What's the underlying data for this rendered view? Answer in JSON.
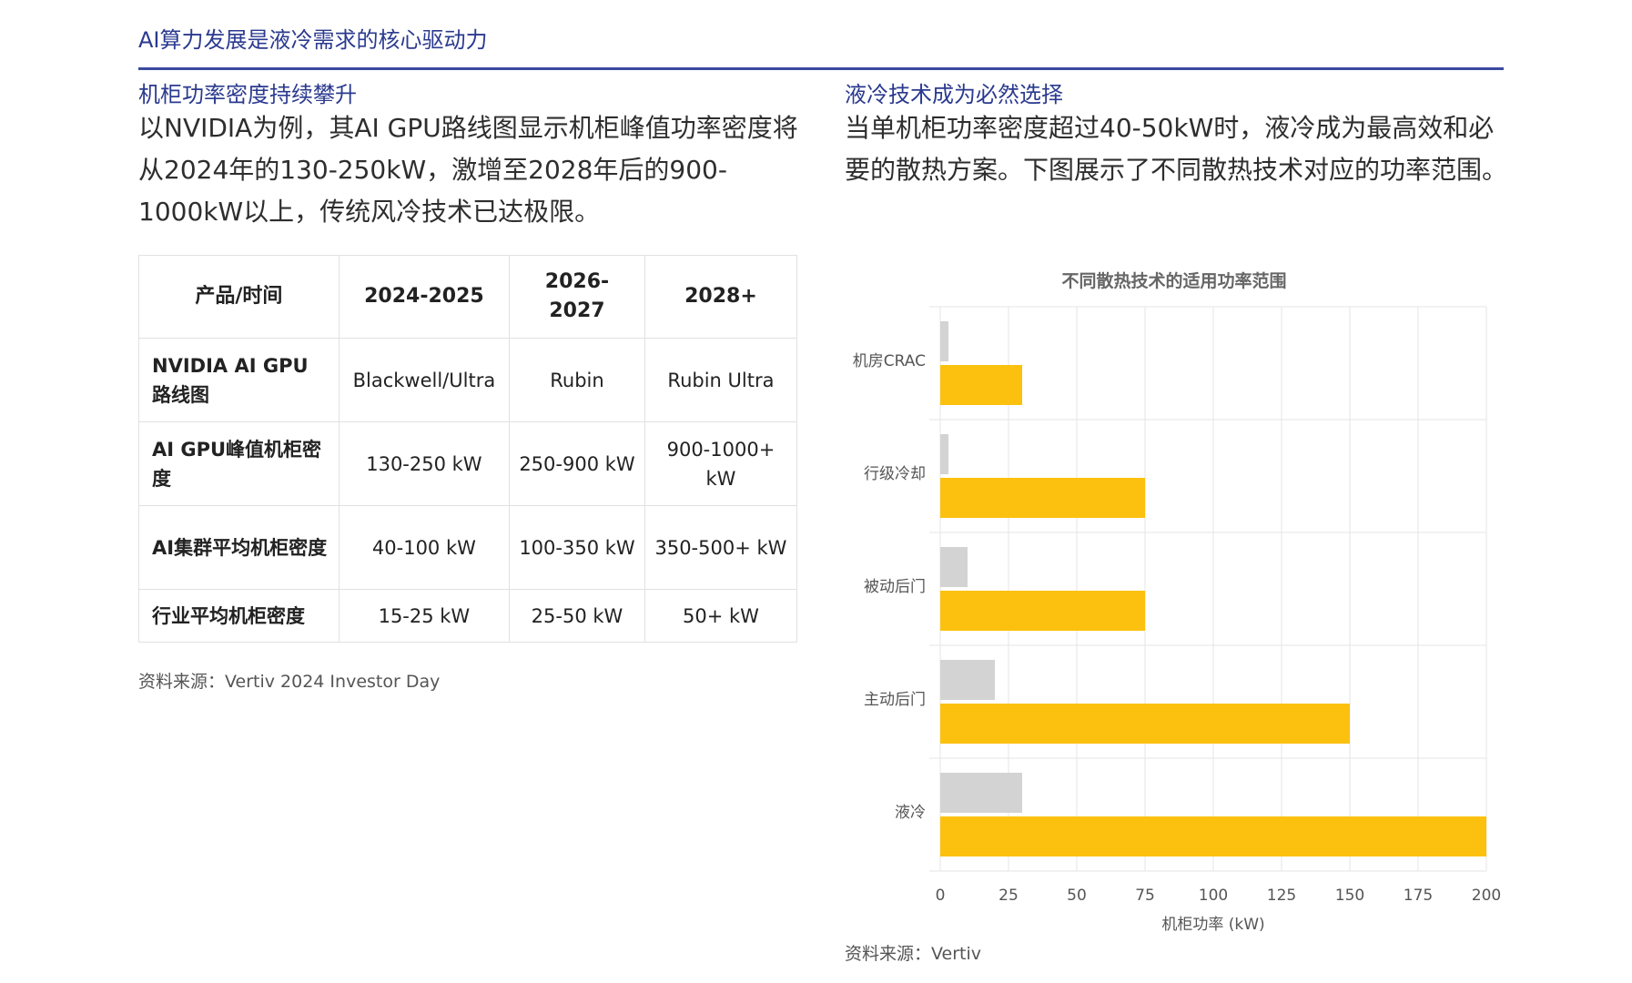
{
  "page_title": "AI算力发展是液冷需求的核心驱动力",
  "left": {
    "heading": "机柜功率密度持续攀升",
    "body": "以NVIDIA为例，其AI GPU路线图显示机柜峰值功率密度将从2024年的130-250kW，激增至2028年后的900-1000kW以上，传统风冷技术已达极限。",
    "table": {
      "headers": [
        "产品/时间",
        "2024-2025",
        "2026-2027",
        "2028+"
      ],
      "rows": [
        [
          "NVIDIA AI GPU 路线图",
          "Blackwell/Ultra",
          "Rubin",
          "Rubin Ultra"
        ],
        [
          "AI GPU峰值机柜密度",
          "130-250 kW",
          "250-900 kW",
          "900-1000+ kW"
        ],
        [
          "AI集群平均机柜密度",
          "40-100 kW",
          "100-350 kW",
          "350-500+ kW"
        ],
        [
          "行业平均机柜密度",
          "15-25 kW",
          "25-50 kW",
          "50+ kW"
        ]
      ]
    },
    "source": "资料来源：Vertiv 2024 Investor Day"
  },
  "right": {
    "heading": "液冷技术成为必然选择",
    "body": "当单机柜功率密度超过40-50kW时，液冷成为最高效和必要的散热方案。下图展示了不同散热技术对应的功率范围。",
    "source": "资料来源：Vertiv"
  },
  "colors": {
    "accent": "#2b3a8f",
    "bar_min": "#d3d3d3",
    "bar_max": "#fcc10f"
  },
  "chart_data": {
    "type": "bar",
    "orientation": "horizontal",
    "title": "不同散热技术的适用功率范围",
    "categories": [
      "机房CRAC",
      "行级冷却",
      "被动后门",
      "主动后门",
      "液冷"
    ],
    "series": [
      {
        "values": [
          3,
          3,
          10,
          20,
          30
        ]
      },
      {
        "values": [
          30,
          75,
          75,
          150,
          200
        ]
      }
    ],
    "xlabel": "机柜功率 (kW)",
    "ylabel": "",
    "xlim": [
      0,
      200
    ],
    "xticks": [
      0,
      25,
      50,
      75,
      100,
      125,
      150,
      175,
      200
    ],
    "grid": true,
    "legend": "none"
  }
}
